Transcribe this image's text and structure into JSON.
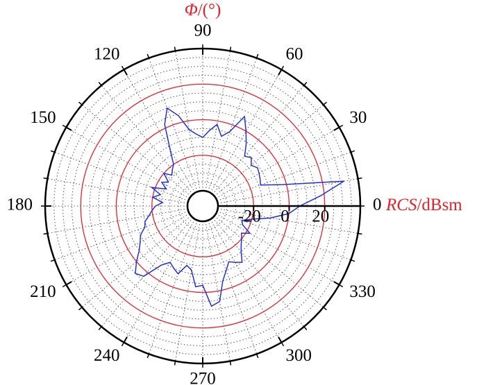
{
  "chart_data": {
    "type": "polar",
    "theta_label": {
      "symbol": "Φ",
      "unit": "/(°)"
    },
    "r_label": {
      "symbol": "RCS",
      "unit": "/dBsm"
    },
    "rlim": [
      -40,
      40
    ],
    "rticks": [
      -20,
      0,
      20
    ],
    "r_minor_step": 5,
    "thetaticks": [
      0,
      30,
      60,
      90,
      120,
      150,
      180,
      210,
      240,
      270,
      300,
      330
    ],
    "theta_minor_step": 10,
    "theta": [
      0,
      5,
      10,
      15,
      20,
      25,
      30,
      35,
      40,
      45,
      50,
      55,
      60,
      65,
      70,
      75,
      80,
      85,
      90,
      95,
      100,
      105,
      110,
      115,
      120,
      125,
      130,
      135,
      140,
      145,
      150,
      155,
      160,
      165,
      170,
      175,
      180,
      185,
      190,
      195,
      200,
      205,
      210,
      215,
      220,
      225,
      230,
      235,
      240,
      245,
      250,
      255,
      260,
      265,
      270,
      275,
      280,
      285,
      290,
      295,
      300,
      305,
      310,
      315,
      320,
      325,
      330,
      335,
      340,
      345,
      350,
      355
    ],
    "values": [
      6,
      18,
      32,
      -2,
      -14,
      -13,
      -12,
      -11,
      -13,
      -10,
      -12,
      -6,
      0,
      7,
      -4,
      -8,
      -2,
      -6,
      -10,
      -8,
      -5,
      4,
      10,
      2,
      -12,
      -20,
      -22,
      -24,
      -20,
      -25,
      -22,
      -26,
      -18,
      -24,
      -20,
      -26,
      -22,
      -20,
      -18,
      -15,
      -14,
      -10,
      -8,
      -5,
      0,
      5,
      3,
      -8,
      -12,
      -10,
      -8,
      -14,
      -12,
      -3,
      -4,
      8,
      6,
      -5,
      -10,
      -14,
      -12,
      -10,
      -15,
      -18,
      -20,
      -22,
      -18,
      -24,
      -25,
      -20,
      -10,
      0
    ],
    "color": "#1f2fe0",
    "grid_color": "#e8202a"
  }
}
